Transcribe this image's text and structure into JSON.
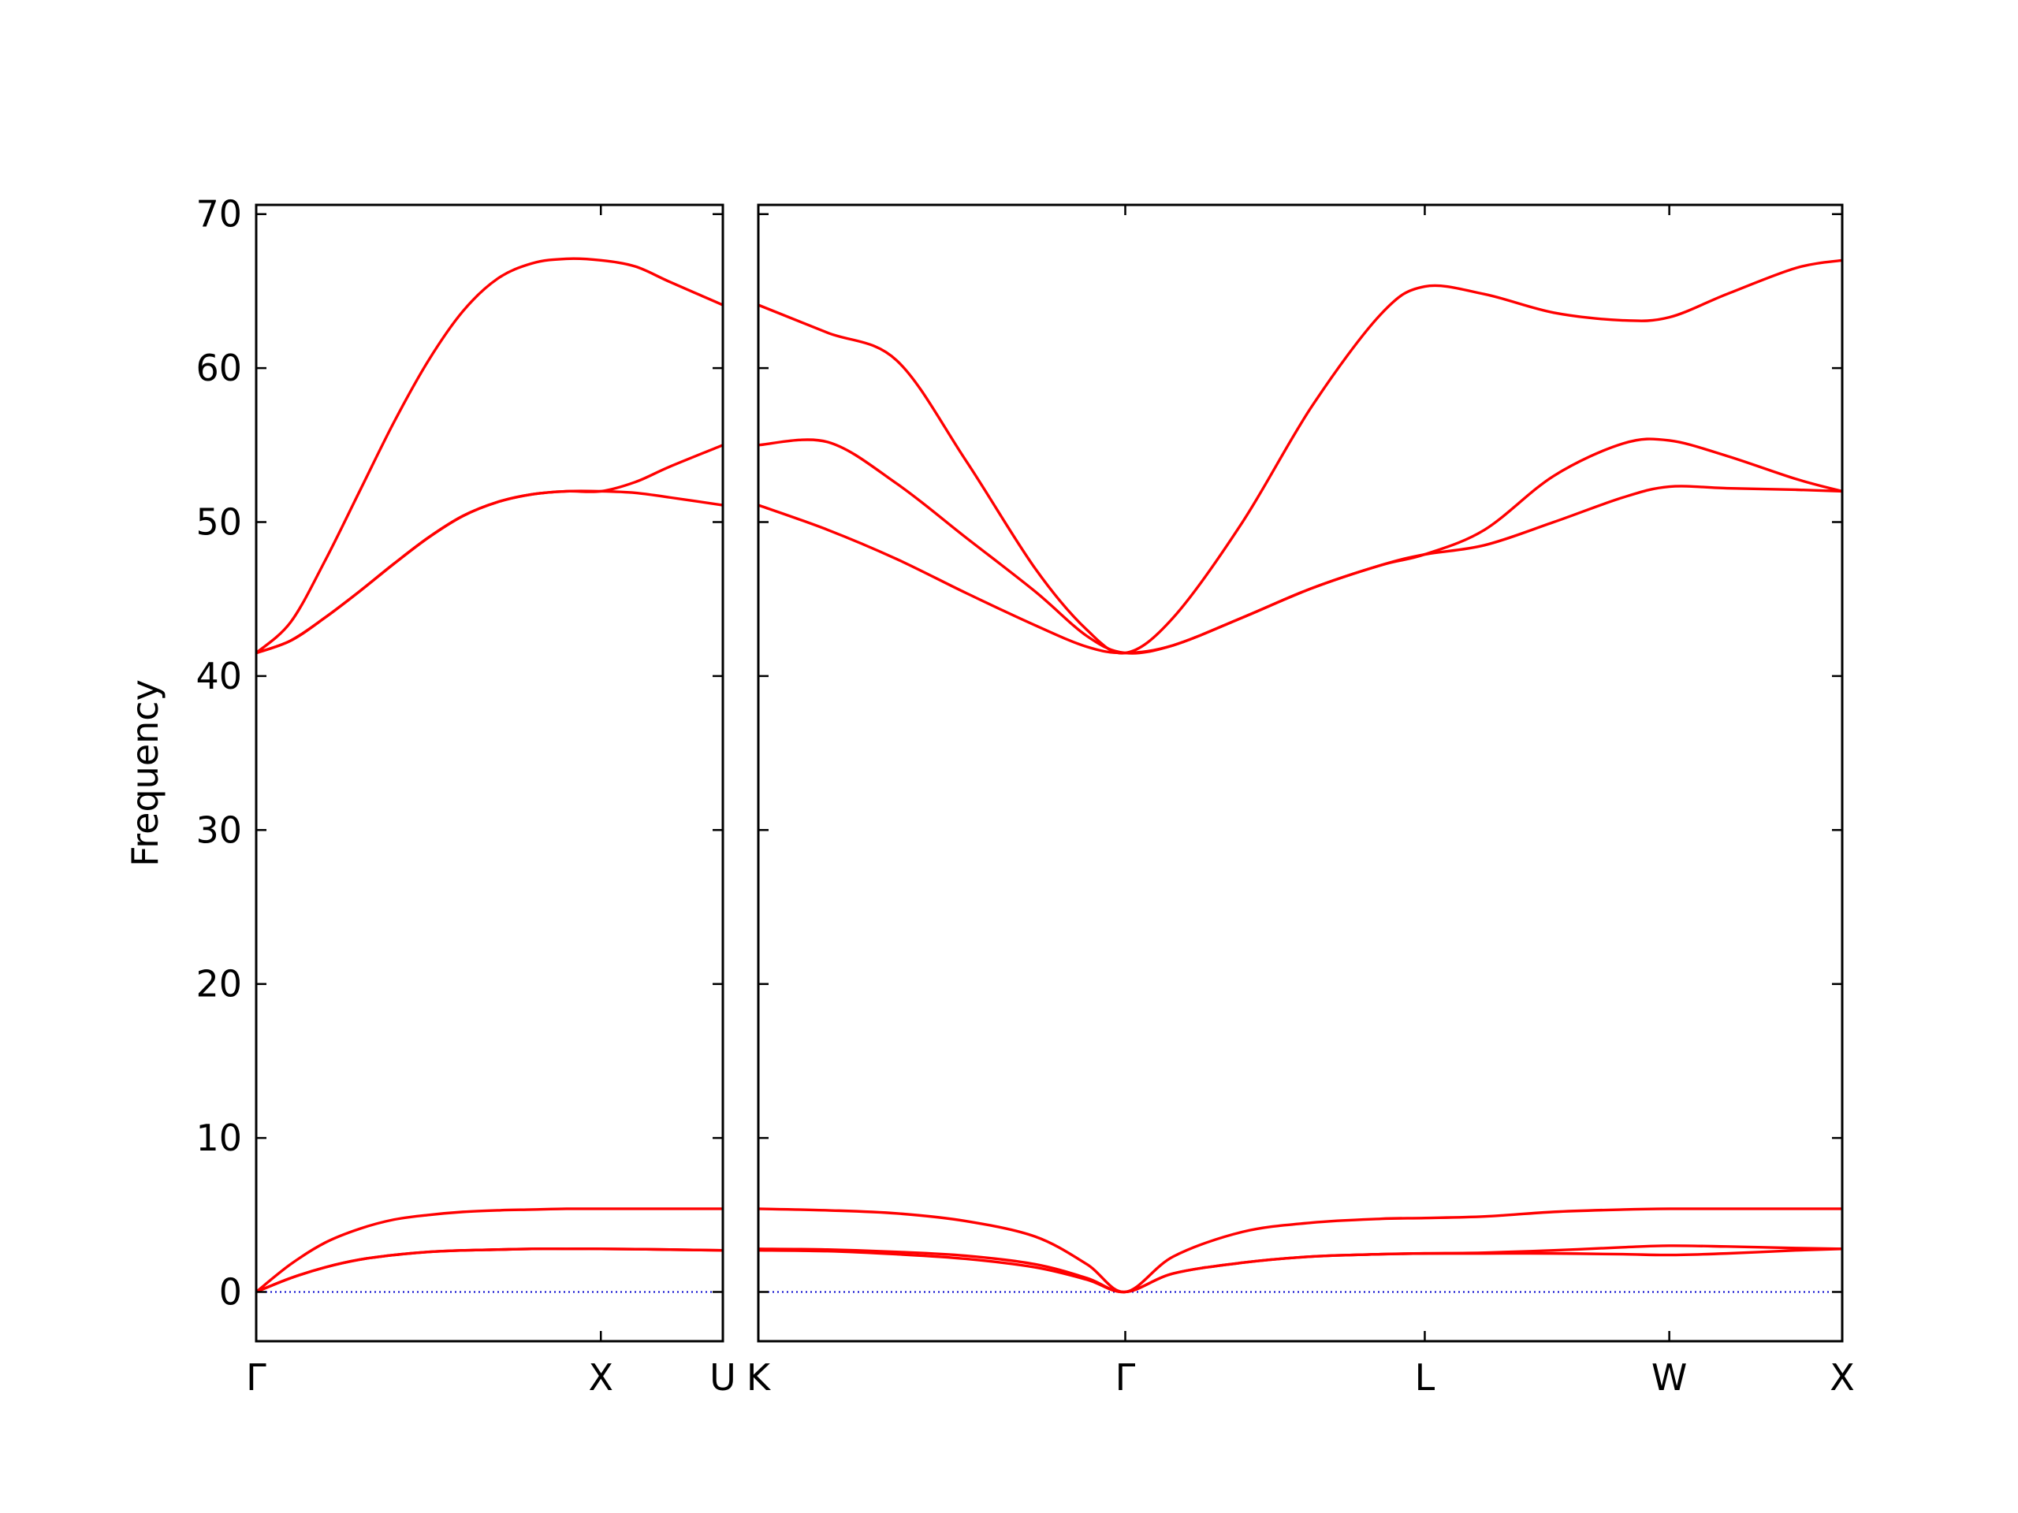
{
  "chart_data": [
    {
      "type": "line",
      "ylabel": "Frequency",
      "x": [
        0,
        0.1,
        0.2,
        0.3,
        0.4,
        0.5,
        0.6,
        0.7,
        0.8,
        0.9,
        1.0,
        1.1,
        1.2,
        1.354
      ],
      "series": [
        {
          "color": "#ff0000",
          "values": [
            41.5,
            43.5,
            47.5,
            52,
            56.5,
            60.5,
            63.7,
            65.8,
            66.8,
            67.1,
            67.0,
            66.6,
            65.6,
            64.1
          ]
        },
        {
          "color": "#ff0000",
          "values": [
            41.5,
            42.3,
            43.8,
            45.5,
            47.3,
            49,
            50.4,
            51.3,
            51.8,
            52,
            52,
            52.6,
            53.6,
            55
          ]
        },
        {
          "color": "#ff0000",
          "values": [
            41.5,
            42.3,
            43.8,
            45.5,
            47.3,
            49,
            50.4,
            51.3,
            51.8,
            52,
            52,
            51.9,
            51.6,
            51.1
          ]
        },
        {
          "color": "#ff0000",
          "values": [
            0,
            1.8,
            3.2,
            4.1,
            4.7,
            5.0,
            5.2,
            5.3,
            5.35,
            5.4,
            5.4,
            5.4,
            5.4,
            5.4
          ]
        },
        {
          "color": "#ff0000",
          "values": [
            0,
            0.9,
            1.6,
            2.1,
            2.4,
            2.6,
            2.7,
            2.75,
            2.8,
            2.8,
            2.8,
            2.78,
            2.75,
            2.7
          ]
        },
        {
          "color": "#ff0000",
          "values": [
            0,
            0.9,
            1.6,
            2.1,
            2.4,
            2.6,
            2.7,
            2.75,
            2.8,
            2.8,
            2.8,
            2.78,
            2.75,
            2.7
          ]
        }
      ],
      "xlim": [
        0,
        1.354
      ],
      "ylim": [
        -3.2,
        70.6
      ],
      "xticks": [
        {
          "value": 0,
          "label": "Γ"
        },
        {
          "value": 1.0,
          "label": "X"
        },
        {
          "value": 1.354,
          "label": "U"
        }
      ],
      "yticks": [
        0,
        10,
        20,
        30,
        40,
        50,
        60,
        70
      ],
      "hlines": [
        {
          "y": 0,
          "color": "#0000cc"
        }
      ]
    },
    {
      "type": "line",
      "x": [
        0,
        0.2,
        0.4,
        0.6,
        0.8,
        0.95,
        1.061,
        1.2,
        1.4,
        1.6,
        1.8,
        1.927,
        2.1,
        2.3,
        2.5,
        2.634,
        2.8,
        3.0,
        3.134
      ],
      "series": [
        {
          "color": "#ff0000",
          "values": [
            64.1,
            62.3,
            60.5,
            54,
            47,
            43,
            41.5,
            43.8,
            50,
            57.5,
            63.5,
            65.3,
            64.8,
            63.6,
            63.1,
            63.3,
            64.8,
            66.5,
            67
          ]
        },
        {
          "color": "#ff0000",
          "values": [
            55,
            55.2,
            52.5,
            49,
            45.5,
            42.6,
            41.5,
            42,
            43.8,
            45.7,
            47.2,
            47.9,
            49.5,
            53,
            55.1,
            55.3,
            54.3,
            52.8,
            52
          ]
        },
        {
          "color": "#ff0000",
          "values": [
            51.1,
            49.5,
            47.6,
            45.4,
            43.3,
            41.9,
            41.5,
            42,
            43.8,
            45.7,
            47.2,
            47.9,
            48.5,
            50,
            51.6,
            52.3,
            52.2,
            52.1,
            52
          ]
        },
        {
          "color": "#ff0000",
          "values": [
            5.4,
            5.3,
            5.1,
            4.6,
            3.6,
            1.8,
            0,
            2.3,
            3.9,
            4.5,
            4.75,
            4.8,
            4.9,
            5.2,
            5.35,
            5.4,
            5.4,
            5.4,
            5.4
          ]
        },
        {
          "color": "#ff0000",
          "values": [
            2.8,
            2.75,
            2.6,
            2.35,
            1.8,
            0.9,
            0,
            1.2,
            1.9,
            2.3,
            2.45,
            2.5,
            2.55,
            2.7,
            2.9,
            3.0,
            2.95,
            2.85,
            2.8
          ]
        },
        {
          "color": "#ff0000",
          "values": [
            2.7,
            2.65,
            2.45,
            2.15,
            1.6,
            0.8,
            0,
            1.2,
            1.9,
            2.3,
            2.45,
            2.5,
            2.5,
            2.5,
            2.45,
            2.4,
            2.5,
            2.7,
            2.8
          ]
        }
      ],
      "xlim": [
        0,
        3.134
      ],
      "ylim": [
        -3.2,
        70.6
      ],
      "xticks": [
        {
          "value": 0,
          "label": "K"
        },
        {
          "value": 1.061,
          "label": "Γ"
        },
        {
          "value": 1.927,
          "label": "L"
        },
        {
          "value": 2.634,
          "label": "W"
        },
        {
          "value": 3.134,
          "label": "X"
        }
      ],
      "hlines": [
        {
          "y": 0,
          "color": "#0000cc"
        }
      ]
    }
  ]
}
